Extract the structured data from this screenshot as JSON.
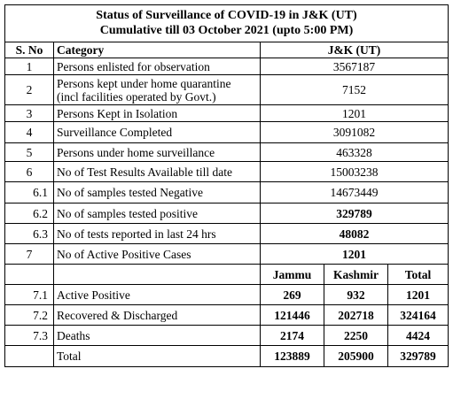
{
  "title_line1": "Status of Surveillance of COVID-19 in J&K (UT)",
  "title_line2": "Cumulative till 03 October 2021 (upto 5:00 PM)",
  "headers": {
    "sno": "S. No",
    "category": "Category",
    "region": "J&K (UT)"
  },
  "rows": [
    {
      "sno": "1",
      "category": "Persons enlisted for observation",
      "value": "3567187"
    },
    {
      "sno": "2",
      "category": "Persons kept under home quarantine",
      "category2": "(incl facilities operated by Govt.)",
      "value": "7152"
    },
    {
      "sno": "3",
      "category": "Persons Kept in Isolation",
      "value": "1201"
    },
    {
      "sno": "4",
      "category": "Surveillance  Completed",
      "value": "3091082"
    },
    {
      "sno": "5",
      "category": "Persons under home surveillance",
      "value": "463328"
    },
    {
      "sno": "6",
      "category": "No of Test Results Available till date",
      "value": "15003238"
    },
    {
      "sno": "6.1",
      "category": "No of samples tested Negative",
      "value": "14673449"
    },
    {
      "sno": "6.2",
      "category": "No of samples tested positive",
      "value": "329789"
    },
    {
      "sno": "6.3",
      "category": "No of tests reported in last 24 hrs",
      "value": "48082"
    },
    {
      "sno": "7",
      "category": "No of Active Positive Cases",
      "value": "1201"
    }
  ],
  "split_headers": {
    "jammu": "Jammu",
    "kashmir": "Kashmir",
    "total": "Total"
  },
  "split_rows": [
    {
      "sno": "7.1",
      "category": "Active Positive",
      "jammu": "269",
      "kashmir": "932",
      "total": "1201"
    },
    {
      "sno": "7.2",
      "category": "Recovered & Discharged",
      "jammu": "121446",
      "kashmir": "202718",
      "total": "324164"
    },
    {
      "sno": "7.3",
      "category": "Deaths",
      "jammu": "2174",
      "kashmir": "2250",
      "total": "4424"
    },
    {
      "sno": "",
      "category": "Total",
      "jammu": "123889",
      "kashmir": "205900",
      "total": "329789"
    }
  ]
}
